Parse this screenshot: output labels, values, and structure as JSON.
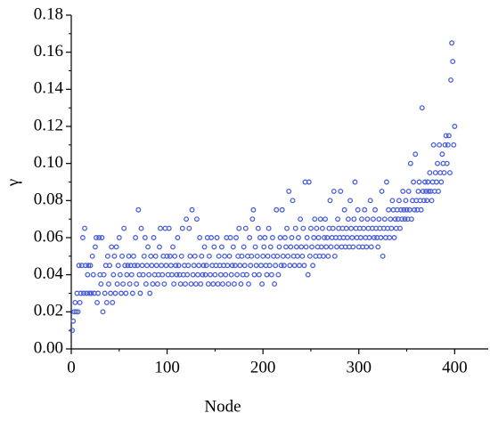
{
  "chart_data": {
    "type": "scatter",
    "xlabel": "Node",
    "ylabel": "γ",
    "color": "#4a5fd8",
    "xlim": [
      0,
      435
    ],
    "ylim": [
      0,
      0.18
    ],
    "xticks": [
      0,
      100,
      200,
      300,
      400
    ],
    "yticks": [
      {
        "value": 0,
        "label": "0.00"
      },
      {
        "value": 0.02,
        "label": "0.02"
      },
      {
        "value": 0.04,
        "label": "0.04"
      },
      {
        "value": 0.06,
        "label": "0.06"
      },
      {
        "value": 0.08,
        "label": "0.08"
      },
      {
        "value": 0.1,
        "label": "0.10"
      },
      {
        "value": 0.12,
        "label": "0.12"
      },
      {
        "value": 0.14,
        "label": "0.14"
      },
      {
        "value": 0.16,
        "label": "0.16"
      },
      {
        "value": 0.18,
        "label": "0.18"
      }
    ],
    "x": [
      1,
      2,
      3,
      4,
      5,
      6,
      7,
      8,
      9,
      10,
      11,
      12,
      13,
      14,
      15,
      16,
      17,
      18,
      19,
      20,
      21,
      22,
      23,
      24,
      25,
      26,
      27,
      28,
      29,
      30,
      31,
      32,
      33,
      34,
      35,
      36,
      37,
      38,
      39,
      40,
      41,
      42,
      43,
      44,
      45,
      46,
      47,
      48,
      49,
      50,
      51,
      52,
      53,
      54,
      55,
      56,
      57,
      58,
      59,
      60,
      61,
      62,
      63,
      64,
      65,
      66,
      67,
      68,
      69,
      70,
      71,
      72,
      73,
      74,
      75,
      76,
      77,
      78,
      79,
      80,
      81,
      82,
      83,
      84,
      85,
      86,
      87,
      88,
      89,
      90,
      91,
      92,
      93,
      94,
      95,
      96,
      97,
      98,
      99,
      100,
      101,
      102,
      103,
      104,
      105,
      106,
      107,
      108,
      109,
      110,
      111,
      112,
      113,
      114,
      115,
      116,
      117,
      118,
      119,
      120,
      121,
      122,
      123,
      124,
      125,
      126,
      127,
      128,
      129,
      130,
      131,
      132,
      133,
      134,
      135,
      136,
      137,
      138,
      139,
      140,
      141,
      142,
      143,
      144,
      145,
      146,
      147,
      148,
      149,
      150,
      151,
      152,
      153,
      154,
      155,
      156,
      157,
      158,
      159,
      160,
      161,
      162,
      163,
      164,
      165,
      166,
      167,
      168,
      169,
      170,
      171,
      172,
      173,
      174,
      175,
      176,
      177,
      178,
      179,
      180,
      181,
      182,
      183,
      184,
      185,
      186,
      187,
      188,
      189,
      190,
      191,
      192,
      193,
      194,
      195,
      196,
      197,
      198,
      199,
      200,
      201,
      202,
      203,
      204,
      205,
      206,
      207,
      208,
      209,
      210,
      211,
      212,
      213,
      214,
      215,
      216,
      217,
      218,
      219,
      220,
      221,
      222,
      223,
      224,
      225,
      226,
      227,
      228,
      229,
      230,
      231,
      232,
      233,
      234,
      235,
      236,
      237,
      238,
      239,
      240,
      241,
      242,
      243,
      244,
      245,
      246,
      247,
      248,
      249,
      250,
      251,
      252,
      253,
      254,
      255,
      256,
      257,
      258,
      259,
      260,
      261,
      262,
      263,
      264,
      265,
      266,
      267,
      268,
      269,
      270,
      271,
      272,
      273,
      274,
      275,
      276,
      277,
      278,
      279,
      280,
      281,
      282,
      283,
      284,
      285,
      286,
      287,
      288,
      289,
      290,
      291,
      292,
      293,
      294,
      295,
      296,
      297,
      298,
      299,
      300,
      301,
      302,
      303,
      304,
      305,
      306,
      307,
      308,
      309,
      310,
      311,
      312,
      313,
      314,
      315,
      316,
      317,
      318,
      319,
      320,
      321,
      322,
      323,
      324,
      325,
      326,
      327,
      328,
      329,
      330,
      331,
      332,
      333,
      334,
      335,
      336,
      337,
      338,
      339,
      340,
      341,
      342,
      343,
      344,
      345,
      346,
      347,
      348,
      349,
      350,
      351,
      352,
      353,
      354,
      355,
      356,
      357,
      358,
      359,
      360,
      361,
      362,
      363,
      364,
      365,
      366,
      367,
      368,
      369,
      370,
      371,
      372,
      373,
      374,
      375,
      376,
      377,
      378,
      379,
      380,
      381,
      382,
      383,
      384,
      385,
      386,
      387,
      388,
      389,
      390,
      391,
      392,
      393,
      394,
      395,
      396,
      397,
      398,
      399,
      400
    ],
    "values": [
      0.01,
      0.015,
      0.02,
      0.025,
      0.02,
      0.03,
      0.02,
      0.045,
      0.025,
      0.03,
      0.045,
      0.06,
      0.03,
      0.065,
      0.045,
      0.03,
      0.04,
      0.045,
      0.03,
      0.045,
      0.03,
      0.05,
      0.04,
      0.03,
      0.055,
      0.06,
      0.025,
      0.03,
      0.06,
      0.04,
      0.035,
      0.06,
      0.02,
      0.04,
      0.03,
      0.045,
      0.025,
      0.05,
      0.035,
      0.045,
      0.03,
      0.055,
      0.025,
      0.04,
      0.05,
      0.03,
      0.055,
      0.035,
      0.045,
      0.06,
      0.04,
      0.03,
      0.05,
      0.035,
      0.065,
      0.045,
      0.03,
      0.04,
      0.045,
      0.05,
      0.035,
      0.045,
      0.04,
      0.03,
      0.05,
      0.045,
      0.06,
      0.035,
      0.045,
      0.075,
      0.04,
      0.03,
      0.065,
      0.045,
      0.04,
      0.05,
      0.06,
      0.035,
      0.045,
      0.055,
      0.04,
      0.03,
      0.05,
      0.045,
      0.035,
      0.06,
      0.04,
      0.05,
      0.045,
      0.035,
      0.04,
      0.055,
      0.065,
      0.045,
      0.04,
      0.05,
      0.035,
      0.065,
      0.045,
      0.05,
      0.04,
      0.065,
      0.05,
      0.045,
      0.04,
      0.055,
      0.035,
      0.05,
      0.045,
      0.04,
      0.06,
      0.045,
      0.04,
      0.035,
      0.05,
      0.065,
      0.04,
      0.045,
      0.035,
      0.07,
      0.04,
      0.045,
      0.065,
      0.05,
      0.035,
      0.075,
      0.04,
      0.045,
      0.05,
      0.035,
      0.07,
      0.04,
      0.045,
      0.06,
      0.035,
      0.05,
      0.04,
      0.045,
      0.055,
      0.04,
      0.045,
      0.06,
      0.035,
      0.05,
      0.04,
      0.06,
      0.045,
      0.035,
      0.055,
      0.04,
      0.045,
      0.06,
      0.035,
      0.05,
      0.045,
      0.04,
      0.055,
      0.035,
      0.045,
      0.05,
      0.04,
      0.06,
      0.045,
      0.035,
      0.05,
      0.06,
      0.04,
      0.045,
      0.055,
      0.035,
      0.045,
      0.06,
      0.04,
      0.05,
      0.065,
      0.045,
      0.035,
      0.05,
      0.04,
      0.055,
      0.045,
      0.065,
      0.04,
      0.05,
      0.035,
      0.06,
      0.045,
      0.05,
      0.07,
      0.075,
      0.04,
      0.055,
      0.045,
      0.05,
      0.065,
      0.04,
      0.06,
      0.045,
      0.035,
      0.05,
      0.055,
      0.06,
      0.045,
      0.04,
      0.05,
      0.065,
      0.045,
      0.055,
      0.04,
      0.06,
      0.05,
      0.035,
      0.045,
      0.075,
      0.05,
      0.04,
      0.055,
      0.06,
      0.045,
      0.075,
      0.05,
      0.045,
      0.06,
      0.055,
      0.065,
      0.05,
      0.085,
      0.045,
      0.055,
      0.06,
      0.08,
      0.05,
      0.045,
      0.065,
      0.055,
      0.05,
      0.06,
      0.045,
      0.07,
      0.055,
      0.05,
      0.065,
      0.045,
      0.09,
      0.055,
      0.06,
      0.04,
      0.09,
      0.05,
      0.065,
      0.055,
      0.045,
      0.06,
      0.07,
      0.05,
      0.065,
      0.055,
      0.06,
      0.05,
      0.07,
      0.055,
      0.065,
      0.05,
      0.06,
      0.07,
      0.055,
      0.06,
      0.05,
      0.065,
      0.08,
      0.055,
      0.06,
      0.065,
      0.085,
      0.05,
      0.06,
      0.055,
      0.07,
      0.065,
      0.06,
      0.085,
      0.055,
      0.065,
      0.06,
      0.075,
      0.055,
      0.065,
      0.06,
      0.07,
      0.055,
      0.08,
      0.065,
      0.06,
      0.055,
      0.07,
      0.09,
      0.065,
      0.06,
      0.075,
      0.055,
      0.065,
      0.06,
      0.07,
      0.055,
      0.065,
      0.075,
      0.06,
      0.055,
      0.07,
      0.065,
      0.06,
      0.08,
      0.055,
      0.065,
      0.07,
      0.06,
      0.075,
      0.065,
      0.06,
      0.055,
      0.07,
      0.065,
      0.06,
      0.085,
      0.05,
      0.065,
      0.07,
      0.06,
      0.09,
      0.065,
      0.075,
      0.06,
      0.07,
      0.065,
      0.08,
      0.075,
      0.06,
      0.07,
      0.065,
      0.075,
      0.07,
      0.08,
      0.065,
      0.075,
      0.07,
      0.085,
      0.075,
      0.07,
      0.08,
      0.075,
      0.07,
      0.085,
      0.075,
      0.1,
      0.07,
      0.08,
      0.09,
      0.075,
      0.105,
      0.08,
      0.075,
      0.085,
      0.09,
      0.08,
      0.075,
      0.13,
      0.085,
      0.08,
      0.09,
      0.085,
      0.08,
      0.09,
      0.085,
      0.095,
      0.085,
      0.08,
      0.09,
      0.11,
      0.085,
      0.095,
      0.09,
      0.1,
      0.085,
      0.11,
      0.095,
      0.09,
      0.105,
      0.1,
      0.095,
      0.11,
      0.115,
      0.1,
      0.11,
      0.115,
      0.095,
      0.145,
      0.165,
      0.155,
      0.11,
      0.12
    ]
  }
}
